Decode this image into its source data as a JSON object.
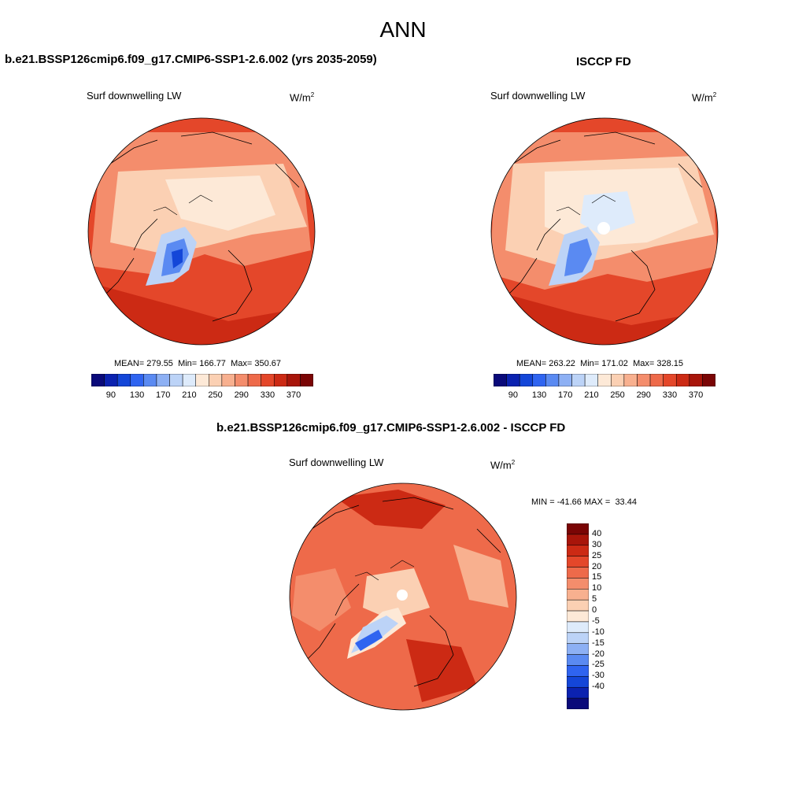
{
  "title": "ANN",
  "panels": [
    {
      "title": "b.e21.BSSP126cmip6.f09_g17.CMIP6-SSP1-2.6.002 (yrs 2035-2059)",
      "variable": "Surf downwelling LW",
      "units_base": "W/m",
      "units_exp": "2",
      "stats": {
        "mean_label": "MEAN=",
        "mean": "279.55",
        "min_label": "Min=",
        "min": "166.77",
        "max_label": "Max=",
        "max": "350.67"
      }
    },
    {
      "title": "ISCCP FD",
      "variable": "Surf downwelling LW",
      "units_base": "W/m",
      "units_exp": "2",
      "stats": {
        "mean_label": "MEAN=",
        "mean": "263.22",
        "min_label": "Min=",
        "min": "171.02",
        "max_label": "Max=",
        "max": "328.15"
      }
    },
    {
      "title": "b.e21.BSSP126cmip6.f09_g17.CMIP6-SSP1-2.6.002 - ISCCP FD",
      "variable": "Surf downwelling LW",
      "units_base": "W/m",
      "units_exp": "2",
      "stats": {
        "min_label": "MIN =",
        "min": "-41.66",
        "max_label": "MAX =",
        "max": "33.44"
      }
    }
  ],
  "abs_colorbar": {
    "colors": [
      "#0a0a7a",
      "#0b22b0",
      "#1446d8",
      "#2f64f0",
      "#5a8af2",
      "#8db0f4",
      "#bcd3f7",
      "#deebfb",
      "#fde9d7",
      "#fbd0b3",
      "#f8b08f",
      "#f48d6c",
      "#ee6a4a",
      "#e4472a",
      "#cc2a14",
      "#a8150a",
      "#7a0505"
    ],
    "ticks": [
      "90",
      "130",
      "170",
      "210",
      "250",
      "290",
      "330",
      "370"
    ]
  },
  "diff_colorbar": {
    "colors": [
      "#7a0505",
      "#a8150a",
      "#cc2a14",
      "#e4472a",
      "#ee6a4a",
      "#f48d6c",
      "#f8b08f",
      "#fbd0b3",
      "#fde9d7",
      "#deebfb",
      "#bcd3f7",
      "#8db0f4",
      "#5a8af2",
      "#2f64f0",
      "#1446d8",
      "#0b22b0",
      "#0a0a7a"
    ],
    "labels": [
      "40",
      "30",
      "25",
      "20",
      "15",
      "10",
      "5",
      "0",
      "-5",
      "-10",
      "-15",
      "-20",
      "-25",
      "-30",
      "-40"
    ]
  },
  "map_colors": {
    "ocean_warm": "#e4472a",
    "mid": "#f48d6c",
    "light": "#fbd0b3",
    "pale": "#fde9d7",
    "ice_light": "#bcd3f7",
    "ice_mid": "#5a8af2",
    "ice_dark": "#1446d8",
    "diff_bg": "#ee6a4a",
    "diff_dark": "#cc2a14",
    "diff_light": "#f8b08f"
  }
}
